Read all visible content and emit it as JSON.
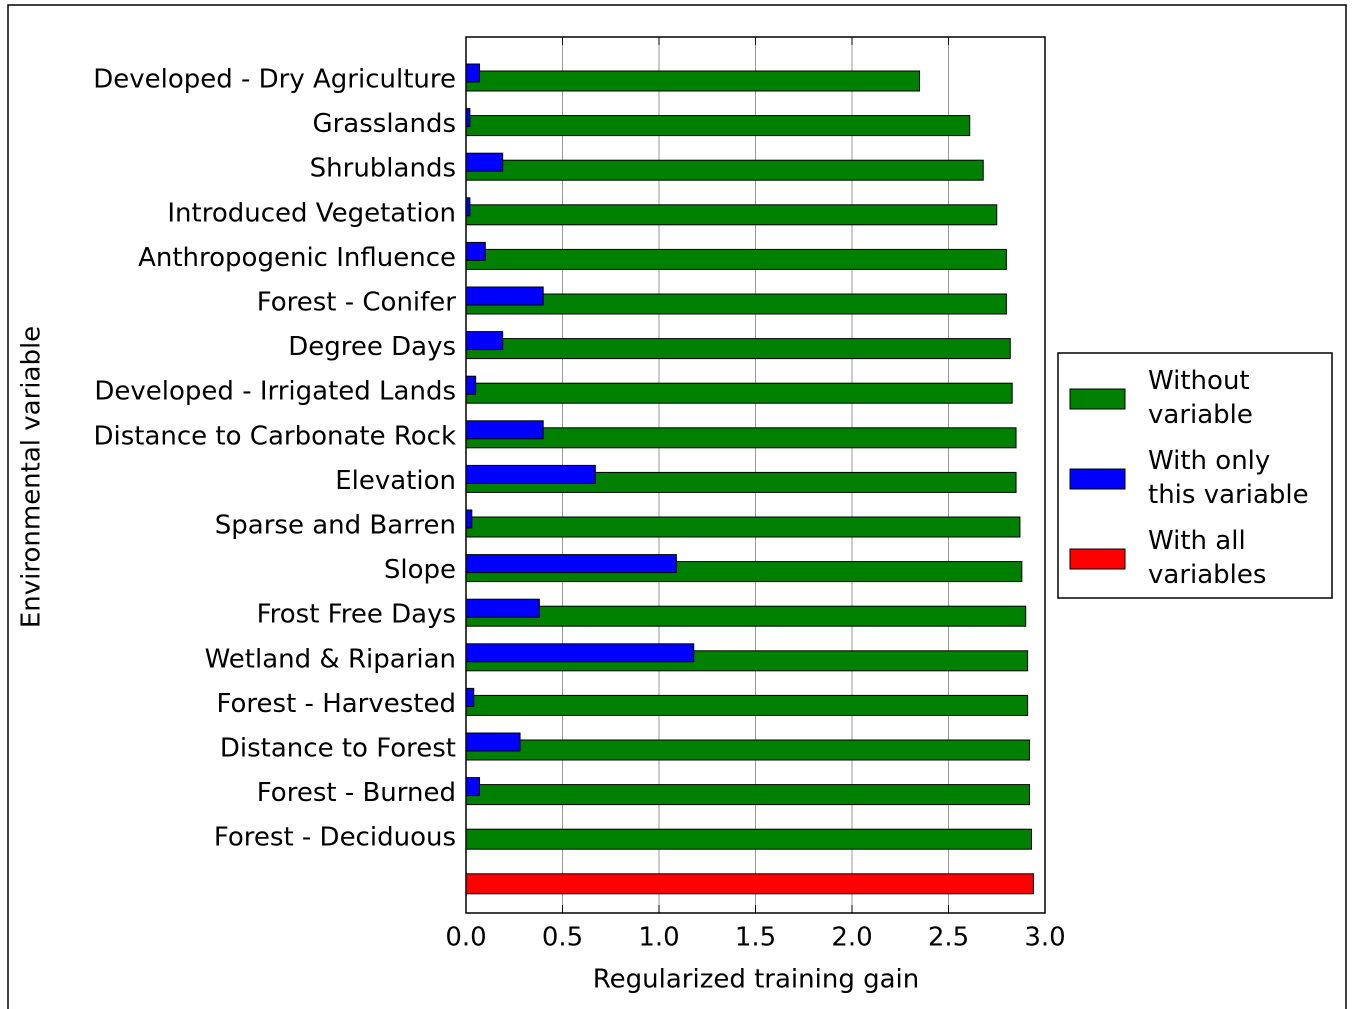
{
  "chart_data": {
    "type": "barh",
    "xlabel": "Regularized training gain",
    "ylabel": "Environmental variable",
    "categories": [
      "Developed - Dry Agriculture",
      "Grasslands",
      "Shrublands",
      "Introduced Vegetation",
      "Anthropogenic Influence",
      "Forest - Conifer",
      "Degree Days",
      "Developed - Irrigated Lands",
      "Distance to Carbonate Rock",
      "Elevation",
      "Sparse and Barren",
      "Slope",
      "Frost Free Days",
      "Wetland & Riparian",
      "Forest - Harvested",
      "Distance to Forest",
      "Forest - Burned",
      "Forest - Deciduous",
      null
    ],
    "series": [
      {
        "name": "Without variable",
        "color": "#008000",
        "values": [
          2.35,
          2.61,
          2.68,
          2.75,
          2.8,
          2.8,
          2.82,
          2.83,
          2.85,
          2.85,
          2.87,
          2.88,
          2.9,
          2.91,
          2.91,
          2.92,
          2.92,
          2.93,
          null
        ]
      },
      {
        "name": "With only this variable",
        "color": "#0000ff",
        "values": [
          0.07,
          0.02,
          0.19,
          0.02,
          0.1,
          0.4,
          0.19,
          0.05,
          0.4,
          0.67,
          0.03,
          1.09,
          0.38,
          1.18,
          0.04,
          0.28,
          0.07,
          0,
          null
        ]
      },
      {
        "name": "With all variables",
        "color": "#ff0000",
        "values": [
          null,
          null,
          null,
          null,
          null,
          null,
          null,
          null,
          null,
          null,
          null,
          null,
          null,
          null,
          null,
          null,
          null,
          null,
          2.94
        ]
      }
    ],
    "xlim": [
      0,
      3
    ],
    "xticks": [
      {
        "value": 0,
        "label": "0.0"
      },
      {
        "value": 0.5,
        "label": "0.5"
      },
      {
        "value": 1,
        "label": "1.0"
      },
      {
        "value": 1.5,
        "label": "1.5"
      },
      {
        "value": 2,
        "label": "2.0"
      },
      {
        "value": 2.5,
        "label": "2.5"
      },
      {
        "value": 3,
        "label": "3.0"
      }
    ],
    "grid": true,
    "legend": "right"
  }
}
